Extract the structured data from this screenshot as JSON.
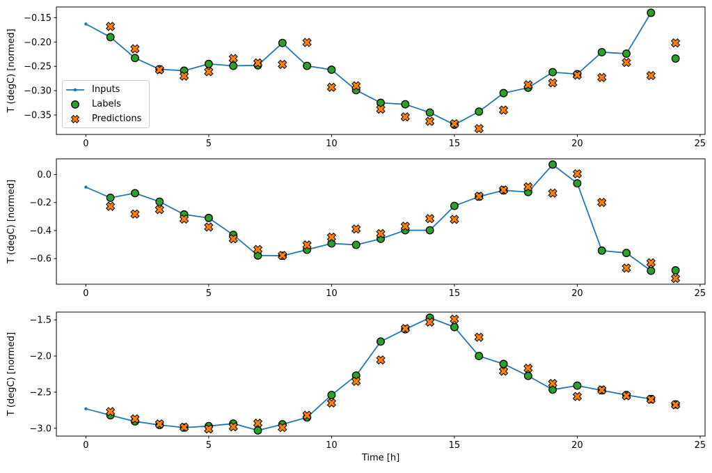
{
  "colors": {
    "inputs": "#1f77b4",
    "labels": "#2ca02c",
    "predictions": "#ff7f0e",
    "marker_edge": "#000000",
    "axis": "#000000",
    "legend_border": "#cccccc",
    "background": "#ffffff"
  },
  "legend": {
    "position": "upper left of first subplot",
    "items": [
      {
        "label": "Inputs",
        "marker": "line-with-dot"
      },
      {
        "label": "Labels",
        "marker": "circle"
      },
      {
        "label": "Predictions",
        "marker": "X"
      }
    ]
  },
  "chart_data": [
    {
      "type": "line",
      "title": "",
      "ylabel": "T (degC) [normed]",
      "xlabel": "",
      "grid": false,
      "xlim": [
        -1.2,
        25.2
      ],
      "ylim": [
        -0.39,
        -0.128
      ],
      "x_ticks": [
        0,
        5,
        10,
        15,
        20,
        25
      ],
      "x_tick_labels": [
        "0",
        "5",
        "10",
        "15",
        "20",
        "25"
      ],
      "y_ticks": [
        -0.15,
        -0.2,
        -0.25,
        -0.3,
        -0.35
      ],
      "y_tick_labels": [
        "−0.15",
        "−0.20",
        "−0.25",
        "−0.30",
        "−0.35"
      ],
      "series": [
        {
          "name": "Inputs",
          "type": "line",
          "marker": "dot",
          "x": [
            0,
            1,
            2,
            3,
            4,
            5,
            6,
            7,
            8,
            9,
            10,
            11,
            12,
            13,
            14,
            15,
            16,
            17,
            18,
            19,
            20,
            21,
            22,
            23
          ],
          "values": [
            -0.163,
            -0.19,
            -0.233,
            -0.256,
            -0.259,
            -0.245,
            -0.249,
            -0.248,
            -0.202,
            -0.249,
            -0.257,
            -0.299,
            -0.325,
            -0.328,
            -0.345,
            -0.37,
            -0.343,
            -0.305,
            -0.294,
            -0.262,
            -0.266,
            -0.221,
            -0.224,
            -0.14
          ]
        },
        {
          "name": "Labels",
          "type": "scatter",
          "marker": "circle",
          "x": [
            1,
            2,
            3,
            4,
            5,
            6,
            7,
            8,
            9,
            10,
            11,
            12,
            13,
            14,
            15,
            16,
            17,
            18,
            19,
            20,
            21,
            22,
            23,
            24
          ],
          "values": [
            -0.19,
            -0.233,
            -0.256,
            -0.259,
            -0.245,
            -0.249,
            -0.248,
            -0.202,
            -0.249,
            -0.257,
            -0.299,
            -0.325,
            -0.328,
            -0.345,
            -0.37,
            -0.343,
            -0.305,
            -0.294,
            -0.262,
            -0.266,
            -0.221,
            -0.224,
            -0.14,
            -0.234
          ]
        },
        {
          "name": "Predictions",
          "type": "scatter",
          "marker": "X",
          "x": [
            1,
            2,
            3,
            4,
            5,
            6,
            7,
            8,
            9,
            10,
            11,
            12,
            13,
            14,
            15,
            16,
            17,
            18,
            19,
            20,
            21,
            22,
            23,
            24
          ],
          "values": [
            -0.168,
            -0.214,
            -0.257,
            -0.27,
            -0.261,
            -0.234,
            -0.243,
            -0.246,
            -0.201,
            -0.293,
            -0.29,
            -0.338,
            -0.354,
            -0.363,
            -0.368,
            -0.378,
            -0.34,
            -0.288,
            -0.284,
            -0.268,
            -0.273,
            -0.242,
            -0.269,
            -0.202
          ]
        }
      ]
    },
    {
      "type": "line",
      "title": "",
      "ylabel": "T (degC) [normed]",
      "xlabel": "",
      "grid": false,
      "xlim": [
        -1.2,
        25.2
      ],
      "ylim": [
        -0.783,
        0.112
      ],
      "x_ticks": [
        0,
        5,
        10,
        15,
        20,
        25
      ],
      "x_tick_labels": [
        "0",
        "5",
        "10",
        "15",
        "20",
        "25"
      ],
      "y_ticks": [
        0.0,
        -0.2,
        -0.4,
        -0.6
      ],
      "y_tick_labels": [
        "0.0",
        "−0.2",
        "−0.4",
        "−0.6"
      ],
      "series": [
        {
          "name": "Inputs",
          "type": "line",
          "marker": "dot",
          "x": [
            0,
            1,
            2,
            3,
            4,
            5,
            6,
            7,
            8,
            9,
            10,
            11,
            12,
            13,
            14,
            15,
            16,
            17,
            18,
            19,
            20,
            21,
            22,
            23
          ],
          "values": [
            -0.09,
            -0.166,
            -0.133,
            -0.194,
            -0.285,
            -0.31,
            -0.431,
            -0.578,
            -0.58,
            -0.537,
            -0.492,
            -0.502,
            -0.459,
            -0.398,
            -0.398,
            -0.224,
            -0.158,
            -0.113,
            -0.125,
            0.071,
            -0.063,
            -0.543,
            -0.56,
            -0.687
          ]
        },
        {
          "name": "Labels",
          "type": "scatter",
          "marker": "circle",
          "x": [
            1,
            2,
            3,
            4,
            5,
            6,
            7,
            8,
            9,
            10,
            11,
            12,
            13,
            14,
            15,
            16,
            17,
            18,
            19,
            20,
            21,
            22,
            23,
            24
          ],
          "values": [
            -0.166,
            -0.133,
            -0.194,
            -0.285,
            -0.31,
            -0.431,
            -0.578,
            -0.58,
            -0.537,
            -0.492,
            -0.502,
            -0.459,
            -0.398,
            -0.398,
            -0.224,
            -0.158,
            -0.113,
            -0.125,
            0.071,
            -0.063,
            -0.543,
            -0.56,
            -0.687,
            -0.684
          ]
        },
        {
          "name": "Predictions",
          "type": "scatter",
          "marker": "X",
          "x": [
            1,
            2,
            3,
            4,
            5,
            6,
            7,
            8,
            9,
            10,
            11,
            12,
            13,
            14,
            15,
            16,
            17,
            18,
            19,
            20,
            21,
            22,
            23,
            24
          ],
          "values": [
            -0.227,
            -0.282,
            -0.25,
            -0.318,
            -0.375,
            -0.459,
            -0.535,
            -0.578,
            -0.503,
            -0.447,
            -0.389,
            -0.422,
            -0.369,
            -0.315,
            -0.32,
            -0.155,
            -0.11,
            -0.088,
            -0.133,
            0.005,
            -0.199,
            -0.668,
            -0.63,
            -0.742
          ]
        }
      ]
    },
    {
      "type": "line",
      "title": "",
      "ylabel": "T (degC) [normed]",
      "xlabel": "Time [h]",
      "grid": false,
      "xlim": [
        -1.2,
        25.2
      ],
      "ylim": [
        -3.108,
        -1.392
      ],
      "x_ticks": [
        0,
        5,
        10,
        15,
        20,
        25
      ],
      "x_tick_labels": [
        "0",
        "5",
        "10",
        "15",
        "20",
        "25"
      ],
      "y_ticks": [
        -1.5,
        -2.0,
        -2.5,
        -3.0
      ],
      "y_tick_labels": [
        "−1.5",
        "−2.0",
        "−2.5",
        "−3.0"
      ],
      "series": [
        {
          "name": "Inputs",
          "type": "line",
          "marker": "dot",
          "x": [
            0,
            1,
            2,
            3,
            4,
            5,
            6,
            7,
            8,
            9,
            10,
            11,
            12,
            13,
            14,
            15,
            16,
            17,
            18,
            19,
            20,
            21,
            22,
            23
          ],
          "values": [
            -2.73,
            -2.82,
            -2.905,
            -2.955,
            -2.99,
            -2.97,
            -2.935,
            -3.03,
            -2.945,
            -2.85,
            -2.54,
            -2.27,
            -1.8,
            -1.63,
            -1.47,
            -1.6,
            -2.0,
            -2.11,
            -2.275,
            -2.465,
            -2.41,
            -2.475,
            -2.54,
            -2.595
          ]
        },
        {
          "name": "Labels",
          "type": "scatter",
          "marker": "circle",
          "x": [
            1,
            2,
            3,
            4,
            5,
            6,
            7,
            8,
            9,
            10,
            11,
            12,
            13,
            14,
            15,
            16,
            17,
            18,
            19,
            20,
            21,
            22,
            23,
            24
          ],
          "values": [
            -2.82,
            -2.905,
            -2.955,
            -2.99,
            -2.97,
            -2.935,
            -3.03,
            -2.945,
            -2.85,
            -2.54,
            -2.27,
            -1.8,
            -1.63,
            -1.47,
            -1.6,
            -2.0,
            -2.11,
            -2.275,
            -2.465,
            -2.41,
            -2.475,
            -2.54,
            -2.595,
            -2.67
          ]
        },
        {
          "name": "Predictions",
          "type": "scatter",
          "marker": "X",
          "x": [
            1,
            2,
            3,
            4,
            5,
            6,
            7,
            8,
            9,
            10,
            11,
            12,
            13,
            14,
            15,
            16,
            17,
            18,
            19,
            20,
            21,
            22,
            23,
            24
          ],
          "values": [
            -2.77,
            -2.87,
            -2.94,
            -2.985,
            -3.01,
            -2.98,
            -2.93,
            -2.99,
            -2.82,
            -2.65,
            -2.35,
            -2.055,
            -1.62,
            -1.53,
            -1.49,
            -1.74,
            -2.21,
            -2.17,
            -2.38,
            -2.56,
            -2.47,
            -2.55,
            -2.6,
            -2.675
          ]
        }
      ]
    }
  ]
}
